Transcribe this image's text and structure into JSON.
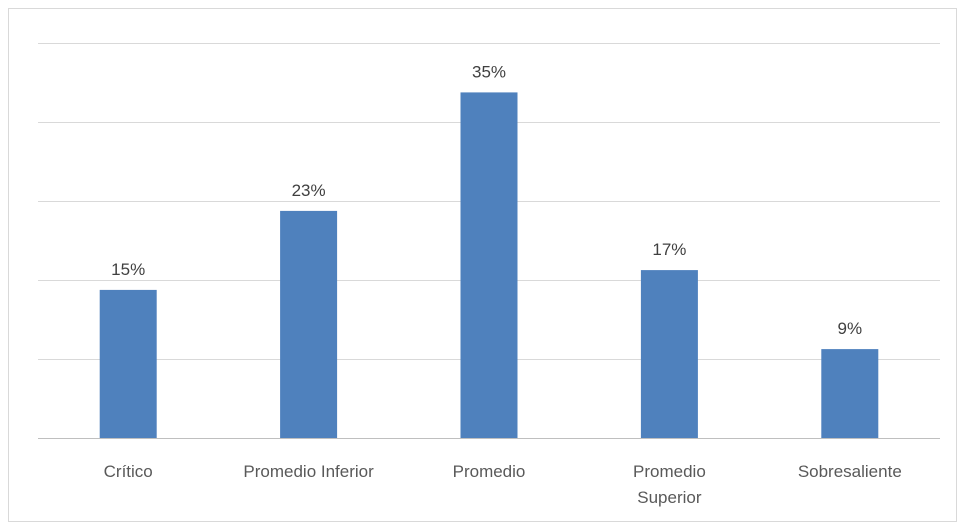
{
  "chart_data": {
    "type": "bar",
    "categories": [
      "Crítico",
      "Promedio Inferior",
      "Promedio",
      "Promedio Superior",
      "Sobresaliente"
    ],
    "category_lines": [
      [
        "Crítico"
      ],
      [
        "Promedio Inferior"
      ],
      [
        "Promedio"
      ],
      [
        "Promedio",
        "Superior"
      ],
      [
        "Sobresaliente"
      ]
    ],
    "values": [
      15,
      23,
      35,
      17,
      9
    ],
    "data_labels": [
      "15%",
      "23%",
      "35%",
      "17%",
      "9%"
    ],
    "unit": "%",
    "ylim": [
      0,
      40
    ],
    "grid": true,
    "colors": {
      "bar": "#4f81bd",
      "gridline": "#d9d9d9",
      "border": "#d9d9d9"
    }
  }
}
